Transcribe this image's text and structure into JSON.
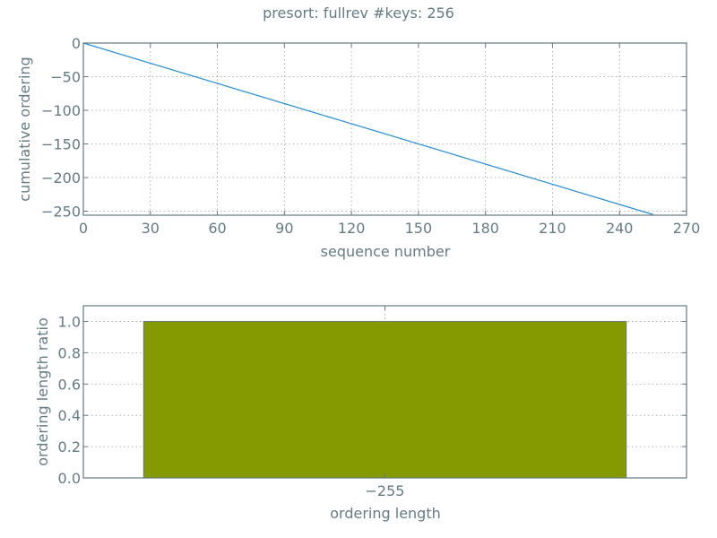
{
  "title": "presort: fullrev #keys: 256",
  "colors": {
    "text": "#657b83",
    "axis": "#657b83",
    "grid": "#9e9e9e",
    "line": "#268bd2",
    "bar": "#859900",
    "background": "#ffffff"
  },
  "chart_data": [
    {
      "type": "line",
      "title": "presort: fullrev #keys: 256",
      "xlabel": "sequence number",
      "ylabel": "cumulative ordering",
      "xlim": [
        0,
        270
      ],
      "ylim": [
        -256,
        0
      ],
      "xticks": [
        "0",
        "30",
        "60",
        "90",
        "120",
        "150",
        "180",
        "210",
        "240",
        "270"
      ],
      "xtick_values": [
        0,
        30,
        60,
        90,
        120,
        150,
        180,
        210,
        240,
        270
      ],
      "yticks": [
        "0",
        "−50",
        "−100",
        "−150",
        "−200",
        "−250"
      ],
      "ytick_values": [
        0,
        -50,
        -100,
        -150,
        -200,
        -250
      ],
      "grid": true,
      "series": [
        {
          "x": [
            0,
            255
          ],
          "y": [
            0,
            -255
          ]
        }
      ]
    },
    {
      "type": "bar",
      "xlabel": "ordering length",
      "ylabel": "ordering length ratio",
      "categories": [
        "−255"
      ],
      "values": [
        1.0
      ],
      "ylim": [
        0,
        1.1
      ],
      "yticks": [
        "0.0",
        "0.2",
        "0.4",
        "0.6",
        "0.8",
        "1.0"
      ],
      "ytick_values": [
        0,
        0.2,
        0.4,
        0.6,
        0.8,
        1.0
      ],
      "grid": true
    }
  ]
}
